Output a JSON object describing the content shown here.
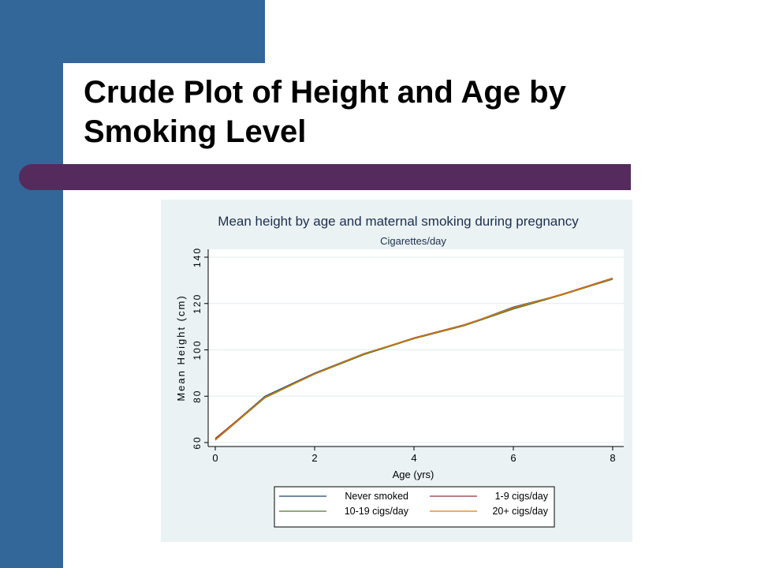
{
  "slide": {
    "title": "Crude Plot of Height and Age by Smoking Level"
  },
  "colors": {
    "sidebar": "#336699",
    "accent_bar": "#552b5e",
    "chart_background": "#eaf2f3",
    "plot_background": "#ffffff"
  },
  "chart_data": {
    "type": "line",
    "title": "Mean height by age and maternal smoking during pregnancy",
    "subtitle": "Cigarettes/day",
    "xlabel": "Age (yrs)",
    "ylabel": "Mean Height (cm)",
    "xlim": [
      0,
      8
    ],
    "ylim": [
      60,
      140
    ],
    "xticks": [
      0,
      2,
      4,
      6,
      8
    ],
    "yticks": [
      60,
      80,
      100,
      120,
      140
    ],
    "grid": true,
    "legend_position": "bottom",
    "x": [
      0,
      1,
      2,
      3,
      4,
      5,
      6,
      7,
      8
    ],
    "series": [
      {
        "name": "Never smoked",
        "color": "#1a476f",
        "values": [
          61.5,
          80,
          90,
          98.5,
          105,
          110.5,
          118.5,
          124,
          130.5
        ]
      },
      {
        "name": "1-9 cigs/day",
        "color": "#90353b",
        "values": [
          61.8,
          79.5,
          89.8,
          98.3,
          105.2,
          110.8,
          118,
          124.2,
          131
        ]
      },
      {
        "name": "10-19 cigs/day",
        "color": "#55752f",
        "values": [
          61,
          79.3,
          89.5,
          98,
          104.8,
          110.3,
          117.6,
          123.8,
          130.5
        ]
      },
      {
        "name": "20+ cigs/day",
        "color": "#e37e00",
        "values": [
          61.2,
          79.6,
          89.7,
          98.4,
          105,
          110.6,
          118.2,
          124,
          130.8
        ]
      }
    ]
  }
}
